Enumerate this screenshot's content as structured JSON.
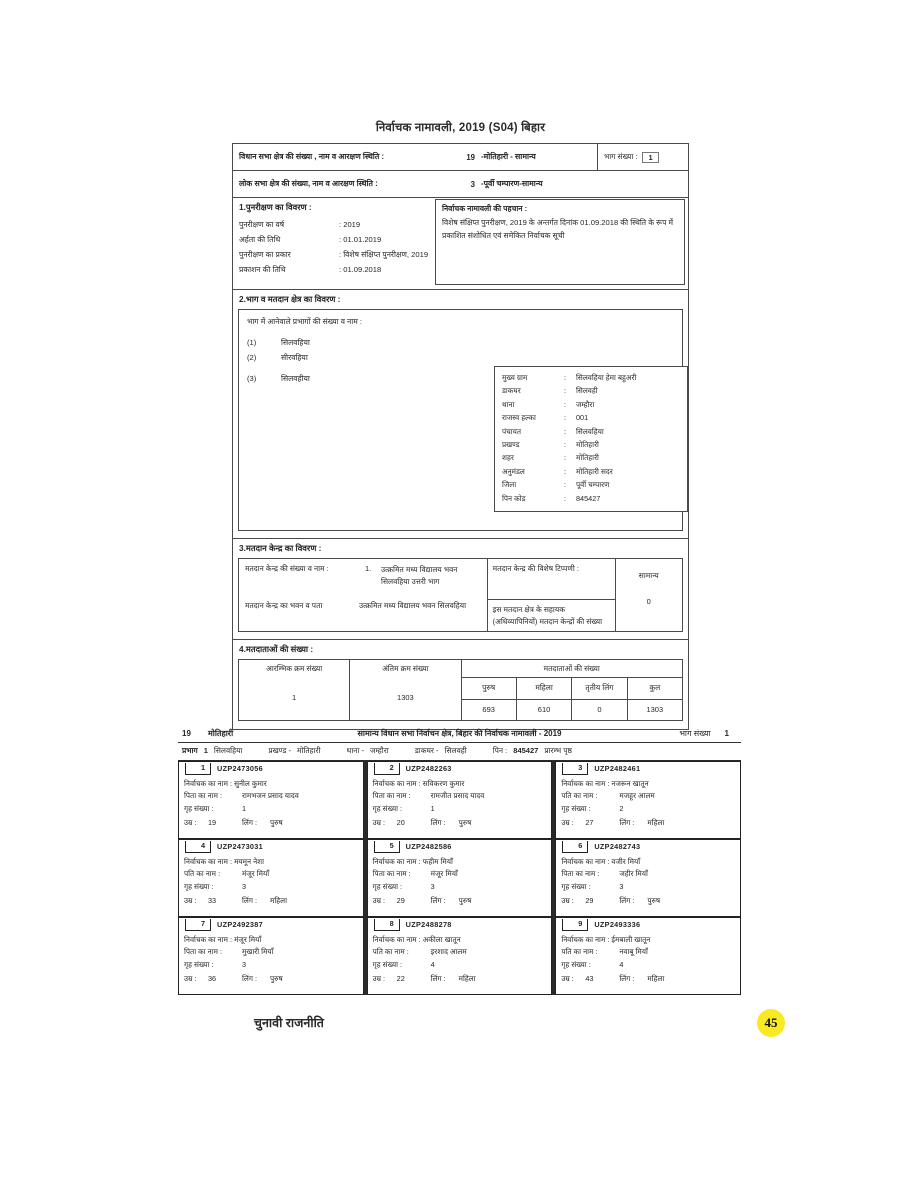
{
  "badge_color": "#f8e920",
  "footer": {
    "label": "चुनावी राजनीति",
    "page_number": "45"
  },
  "roll": {
    "title": "निर्वाचक नामावली, 2019  (S04) बिहार",
    "assembly_label": "विधान सभा क्षेत्र की संख्या , नाम व आरक्षण स्थिति :",
    "assembly_no": "19",
    "assembly_name": "-मोतिहारी - सामान्य",
    "part_label": "भाग संख्या :",
    "part_value": "1",
    "loksabha_label": "लोक सभा क्षेत्र की संख्या, नाम व आरक्षण स्थिति :",
    "loksabha_no": "3",
    "loksabha_name": "-पूर्वी चम्पारण-सामान्य"
  },
  "section1": {
    "heading": "1.पुनरीक्षण का विवरण :",
    "rows": [
      {
        "l": "पुनरीक्षण का वर्ष",
        "v": ": 2019"
      },
      {
        "l": "अर्हता की तिथि",
        "v": ": 01.01.2019"
      },
      {
        "l": "पुनरीक्षण का प्रकार",
        "v": ": विशेष संक्षिप्त पुनरीक्षण, 2019"
      },
      {
        "l": "प्रकाशन की तिथि",
        "v": ": 01.09.2018"
      }
    ],
    "identity_heading": "निर्वाचक नामावली की पहचान :",
    "identity_text": "विशेष संक्षिप्त पुनरीक्षण, 2019 के अन्तर्गत दिनांक 01.09.2018 की स्थिति के रूप में प्रकाशित संशोधित एवं समेकित निर्वाचक सूची"
  },
  "section2": {
    "heading": "2.भाग व मतदान क्षेत्र का विवरण :",
    "list_heading": "भाग में आनेवाले प्रभागों की संख्या व नाम :",
    "parts": [
      {
        "no": "(1)",
        "name": "सिलवहिया"
      },
      {
        "no": "(2)",
        "name": "सीरवहिया"
      },
      {
        "no": "(3)",
        "name": "सिलवहीया"
      }
    ],
    "address": [
      {
        "l": "मुख्य ग्राम",
        "c": ":",
        "v": "सिलवहिया हेमा बहुअरी"
      },
      {
        "l": "डाकघर",
        "c": ":",
        "v": "सिलवही"
      },
      {
        "l": "थाना",
        "c": ":",
        "v": "जम्हौरा"
      },
      {
        "l": "राजस्व हल्का",
        "c": ":",
        "v": "001"
      },
      {
        "l": "पंचायत",
        "c": ":",
        "v": "सिलवहिया"
      },
      {
        "l": "प्रखण्ड",
        "c": ":",
        "v": "मोतिहारी"
      },
      {
        "l": "शहर",
        "c": ":",
        "v": "मोतिहारी"
      },
      {
        "l": "अनुमंडल",
        "c": ":",
        "v": "मोतिहारी सदर"
      },
      {
        "l": "जिला",
        "c": ":",
        "v": "पूर्वी चम्पारण"
      },
      {
        "l": "पिन कोड",
        "c": ":",
        "v": "845427"
      }
    ]
  },
  "section3": {
    "heading": "3.मतदान केन्द्र का विवरण :",
    "num_label": "मतदान केन्द्र की संख्या व नाम :",
    "num_index": "1.",
    "num_value": "उत्क्रमित मध्य विद्यालय भवन सिलवहिया उत्तरी भाग",
    "addr_label": "मतदान केन्द्र का भवन व पता",
    "addr_value": "उत्क्रमित मध्य विद्यालय भवन सिलवहिया",
    "note_label": "मतदान केन्द्र की विशेष टिप्पणी :",
    "note_value": "सामान्य",
    "aux_label": "इस मतदान क्षेत्र के सहायक (अधिव्यापिनियों) मतदान केन्द्रों की संख्या",
    "aux_value": "0"
  },
  "section4": {
    "heading": "4.मतदाताओं की संख्या :",
    "start_label": "आरम्भिक क्रम संख्या",
    "end_label": "अंतिम क्रम संख्या",
    "count_label": "मतदाताओं की संख्या",
    "start_value": "1",
    "end_value": "1303",
    "sub_headers": [
      "पुरुष",
      "महिला",
      "तृतीय लिंग",
      "कुल"
    ],
    "counts": [
      "693",
      "610",
      "0",
      "1303"
    ]
  },
  "chart_data": {
    "type": "table",
    "title": "मतदाताओं की संख्या",
    "categories": [
      "पुरुष",
      "महिला",
      "तृतीय लिंग",
      "कुल"
    ],
    "values": [
      693,
      610,
      0,
      1303
    ]
  },
  "page2": {
    "ac_no": "19",
    "ac_name": "मोतिहारी",
    "title": "सामान्य  विधान सभा निर्वाचन क्षेत्र, बिहार की निर्वाचक नामावली - 2019",
    "part_label": "भाग संख्या",
    "part_value": "1",
    "division_label": "प्रभाग",
    "division_no": "1",
    "division_name": "सिलवहिया",
    "block_label": "प्रखण्ड -",
    "block": "मोतिहारी",
    "ps_label": "थाना -",
    "ps": "जम्हौरा",
    "po_label": "डाकघर -",
    "po": "सिलवही",
    "pin_label": "पिन :",
    "pin": "845427",
    "start_page_label": "प्रारम्भ पृष्ठ",
    "voters": [
      {
        "sn": "1",
        "epic": "UZP2473056",
        "name_label": "निर्वाचक का नाम :",
        "name": "सुनील कुमार",
        "rel_label": "पिता का नाम :",
        "rel": "रामभजन प्रसाद यादव",
        "house_label": "गृह संख्या :",
        "house": "1",
        "age_label": "उम्र :",
        "age": "19",
        "sex_label": "लिंग :",
        "sex": "पुरुष"
      },
      {
        "sn": "2",
        "epic": "UZP2482263",
        "name_label": "निर्वाचक का नाम :",
        "name": "सविकरण कुमार",
        "rel_label": "पिता का नाम :",
        "rel": "रामजीत प्रसाद यादव",
        "house_label": "गृह संख्या :",
        "house": "1",
        "age_label": "उम्र :",
        "age": "20",
        "sex_label": "लिंग :",
        "sex": "पुरुष"
      },
      {
        "sn": "3",
        "epic": "UZP2482461",
        "name_label": "निर्वाचक का नाम :",
        "name": "नजरून खातून",
        "rel_label": "पति का नाम :",
        "rel": "मजहूर आलम",
        "house_label": "गृह संख्या :",
        "house": "2",
        "age_label": "उम्र :",
        "age": "27",
        "sex_label": "लिंग :",
        "sex": "महिला"
      },
      {
        "sn": "4",
        "epic": "UZP2473031",
        "name_label": "निर्वाचक का नाम :",
        "name": "मयमून नेशा",
        "rel_label": "पति का नाम :",
        "rel": "मंजूर मियाँ",
        "house_label": "गृह संख्या :",
        "house": "3",
        "age_label": "उम्र :",
        "age": "33",
        "sex_label": "लिंग :",
        "sex": "महिला"
      },
      {
        "sn": "5",
        "epic": "UZP2482586",
        "name_label": "निर्वाचक का नाम :",
        "name": "फहीम मियाँ",
        "rel_label": "पिता का नाम :",
        "rel": "मंजूर मियाँ",
        "house_label": "गृह संख्या :",
        "house": "3",
        "age_label": "उम्र :",
        "age": "29",
        "sex_label": "लिंग :",
        "sex": "पुरुष"
      },
      {
        "sn": "6",
        "epic": "UZP2482743",
        "name_label": "निर्वाचक का नाम :",
        "name": "वजीर मियाँ",
        "rel_label": "पिता का नाम :",
        "rel": "जहीर मियाँ",
        "house_label": "गृह संख्या :",
        "house": "3",
        "age_label": "उम्र :",
        "age": "29",
        "sex_label": "लिंग :",
        "sex": "पुरुष"
      },
      {
        "sn": "7",
        "epic": "UZP2492387",
        "name_label": "निर्वाचक का नाम :",
        "name": "मंजूर मियाँ",
        "rel_label": "पिता का नाम :",
        "rel": "मुखारी मियाँ",
        "house_label": "गृह संख्या :",
        "house": "3",
        "age_label": "उम्र :",
        "age": "36",
        "sex_label": "लिंग :",
        "sex": "पुरुष"
      },
      {
        "sn": "8",
        "epic": "UZP2488278",
        "name_label": "निर्वाचक का नाम :",
        "name": "अकीला खातून",
        "rel_label": "पति का नाम :",
        "rel": "इरशाद आलम",
        "house_label": "गृह संख्या :",
        "house": "4",
        "age_label": "उम्र :",
        "age": "22",
        "sex_label": "लिंग :",
        "sex": "महिला"
      },
      {
        "sn": "9",
        "epic": "UZP2493336",
        "name_label": "निर्वाचक का नाम :",
        "name": "ईमबाली खातून",
        "rel_label": "पति का नाम :",
        "rel": "नवाबू मियाँ",
        "house_label": "गृह संख्या :",
        "house": "4",
        "age_label": "उम्र :",
        "age": "43",
        "sex_label": "लिंग :",
        "sex": "महिला"
      }
    ]
  }
}
